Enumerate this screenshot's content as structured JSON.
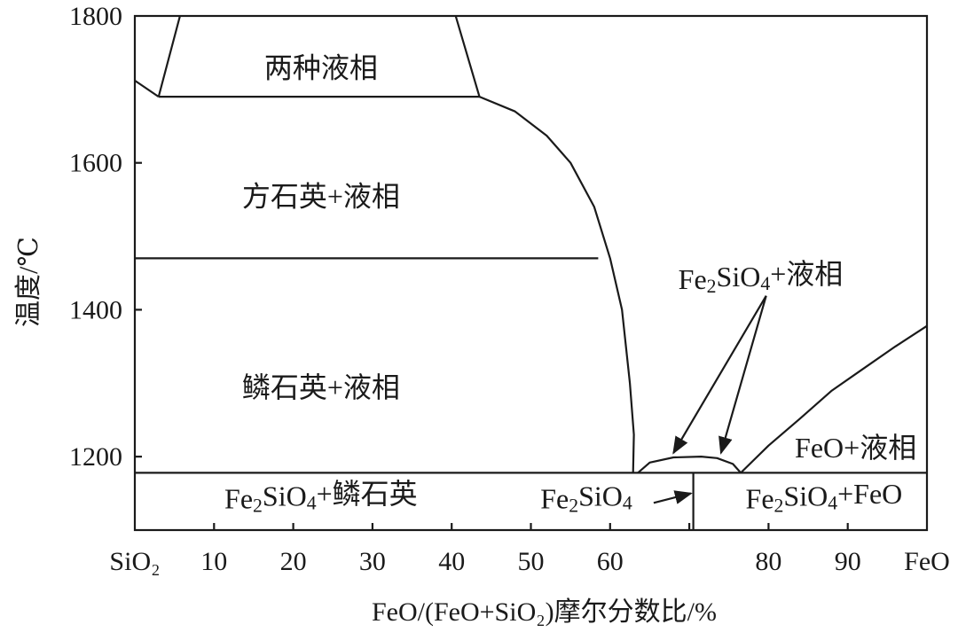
{
  "chart_data": {
    "type": "phase-diagram",
    "title": "",
    "xlabel": "FeO/(FeO+SiO₂)摩尔分数比/%",
    "ylabel": "温度/℃",
    "xlim": [
      0,
      100
    ],
    "ylim": [
      1100,
      1800
    ],
    "x_ticks": [
      {
        "value": 0,
        "label": "SiO₂"
      },
      {
        "value": 10,
        "label": "10"
      },
      {
        "value": 20,
        "label": "20"
      },
      {
        "value": 30,
        "label": "30"
      },
      {
        "value": 40,
        "label": "40"
      },
      {
        "value": 50,
        "label": "50"
      },
      {
        "value": 60,
        "label": "60"
      },
      {
        "value": 80,
        "label": "80"
      },
      {
        "value": 90,
        "label": "90"
      },
      {
        "value": 100,
        "label": "FeO"
      }
    ],
    "x_minor_ticks": [
      70
    ],
    "y_ticks": [
      {
        "value": 1200,
        "label": "1200"
      },
      {
        "value": 1400,
        "label": "1400"
      },
      {
        "value": 1600,
        "label": "1600"
      },
      {
        "value": 1800,
        "label": "1800"
      }
    ],
    "series": [
      {
        "id": "liquid-immiscibility-left",
        "points": [
          [
            5.7,
            1800
          ],
          [
            3.0,
            1690
          ]
        ]
      },
      {
        "id": "liquid-immiscibility-right",
        "points": [
          [
            40.5,
            1800
          ],
          [
            43.5,
            1690
          ]
        ]
      },
      {
        "id": "immiscibility-floor",
        "points": [
          [
            3.0,
            1690
          ],
          [
            43.5,
            1690
          ]
        ]
      },
      {
        "id": "left-liquidus-stub",
        "points": [
          [
            0,
            1712
          ],
          [
            3.0,
            1690
          ]
        ]
      },
      {
        "id": "cristobalite-liquidus",
        "points": [
          [
            43.5,
            1690
          ],
          [
            48,
            1670
          ],
          [
            52,
            1637
          ],
          [
            55,
            1600
          ],
          [
            58,
            1540
          ],
          [
            60,
            1470
          ],
          [
            61.5,
            1400
          ],
          [
            62.5,
            1300
          ],
          [
            63.0,
            1230
          ],
          [
            62.9,
            1178
          ]
        ]
      },
      {
        "id": "cristobalite-tridymite-boundary",
        "points": [
          [
            0,
            1470
          ],
          [
            58.5,
            1470
          ]
        ]
      },
      {
        "id": "fayalite-liquidus",
        "points": [
          [
            63.5,
            1178
          ],
          [
            65,
            1192
          ],
          [
            68,
            1199
          ],
          [
            71.5,
            1200
          ],
          [
            73.5,
            1198
          ],
          [
            75.5,
            1190
          ],
          [
            76.5,
            1178
          ]
        ]
      },
      {
        "id": "wustite-liquidus",
        "points": [
          [
            76.5,
            1178
          ],
          [
            80,
            1215
          ],
          [
            84,
            1252
          ],
          [
            88,
            1290
          ],
          [
            92,
            1320
          ],
          [
            96,
            1350
          ],
          [
            100,
            1378
          ]
        ]
      },
      {
        "id": "eutectic-line",
        "points": [
          [
            0,
            1178
          ],
          [
            100,
            1178
          ]
        ]
      },
      {
        "id": "fayalite-composition",
        "points": [
          [
            70.5,
            1178
          ],
          [
            70.5,
            1100
          ]
        ]
      }
    ],
    "region_labels": [
      {
        "text": "两种液相",
        "x": 23.5,
        "y": 1725,
        "subs": []
      },
      {
        "text": "方石英+液相",
        "x": 23.5,
        "y": 1550,
        "subs": []
      },
      {
        "text": "鳞石英+液相",
        "x": 23.5,
        "y": 1290,
        "subs": []
      },
      {
        "text": "Fe2SiO4+鳞石英",
        "x": 23.5,
        "y": 1138,
        "subs": [
          2,
          6
        ]
      },
      {
        "text": "Fe2SiO4",
        "x": 57,
        "y": 1138,
        "subs": [
          2,
          6
        ]
      },
      {
        "text": "Fe2SiO4+FeO",
        "x": 87,
        "y": 1138,
        "subs": [
          2,
          6
        ]
      },
      {
        "text": "FeO+液相",
        "x": 91,
        "y": 1208,
        "subs": []
      },
      {
        "text": "Fe2SiO4+液相",
        "x": 79,
        "y": 1437,
        "subs": [
          2,
          6
        ]
      }
    ],
    "arrows": [
      {
        "from": [
          79.7,
          1419
        ],
        "to": [
          68.0,
          1205
        ]
      },
      {
        "from": [
          79.7,
          1419
        ],
        "to": [
          74.0,
          1205
        ]
      },
      {
        "from": [
          65.5,
          1137
        ],
        "to": [
          70.2,
          1150
        ]
      }
    ],
    "grid": false,
    "legend": "none"
  }
}
